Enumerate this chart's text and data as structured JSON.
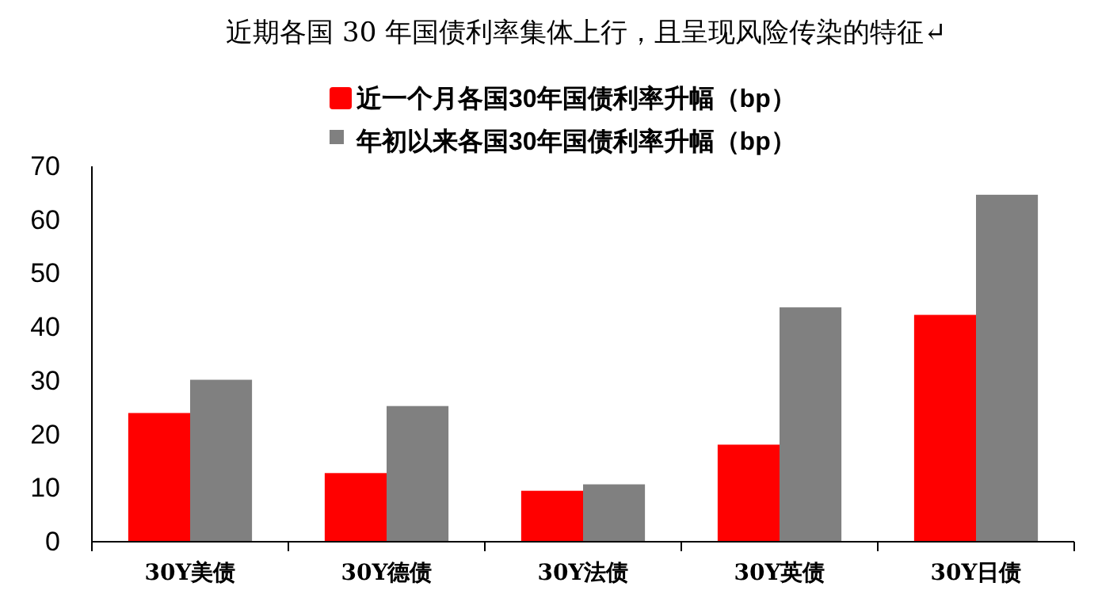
{
  "chart_data": {
    "type": "bar",
    "title": "近期各国 30 年国债利率集体上行，且呈现风险传染的特征↵",
    "categories": [
      "30Y美债",
      "30Y德债",
      "30Y法债",
      "30Y英债",
      "30Y日债"
    ],
    "series": [
      {
        "name": "近一个月各国30年国债利率升幅（bp）",
        "color": "#ff0000",
        "values": [
          24,
          12.8,
          9.5,
          18.1,
          42.3
        ]
      },
      {
        "name": "年初以来各国30年国债利率升幅（bp）",
        "color": "#808080",
        "values": [
          30.2,
          25.3,
          10.7,
          43.7,
          64.7
        ]
      }
    ],
    "ylim": [
      0,
      70
    ],
    "yticks": [
      0,
      10,
      20,
      30,
      40,
      50,
      60,
      70
    ],
    "grid": false,
    "legend": "top"
  }
}
